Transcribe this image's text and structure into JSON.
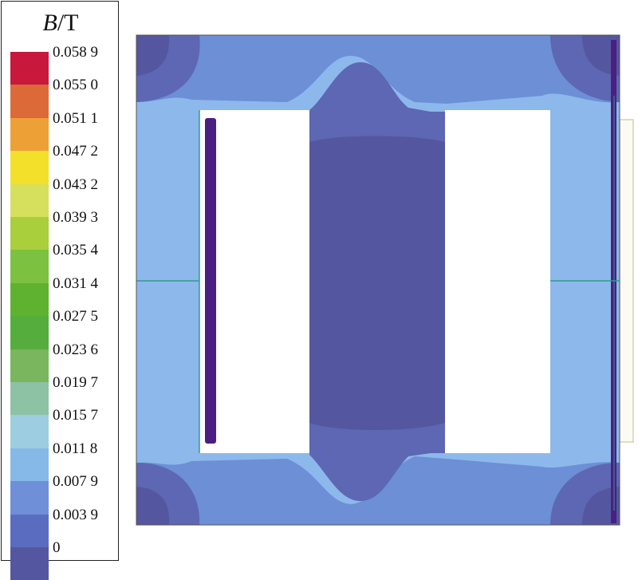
{
  "legend": {
    "title_symbol": "B",
    "title_unit": "/T",
    "ticks": [
      "0.058 9",
      "0.055 0",
      "0.051 1",
      "0.047 2",
      "0.043 2",
      "0.039 3",
      "0.035 4",
      "0.031 4",
      "0.027 5",
      "0.023 6",
      "0.019 7",
      "0.015 7",
      "0.011 8",
      "0.007 9",
      "0.003 9",
      "0"
    ],
    "colors": [
      "#c8183c",
      "#dc6a38",
      "#eda035",
      "#f3e02a",
      "#d6e05c",
      "#a9cf3c",
      "#7cc13f",
      "#5fb22f",
      "#55ad3d",
      "#79b65d",
      "#8ec2a5",
      "#9ccde0",
      "#86b8e8",
      "#6f8fd8",
      "#5a6cc0",
      "#54579f"
    ]
  },
  "field_colors": {
    "low": "#54579f",
    "low_mid": "#5d67b3",
    "mid": "#6c8fd6",
    "high": "#8db8eb",
    "coil": "#4a1f82",
    "line": "#2f9c8c"
  }
}
